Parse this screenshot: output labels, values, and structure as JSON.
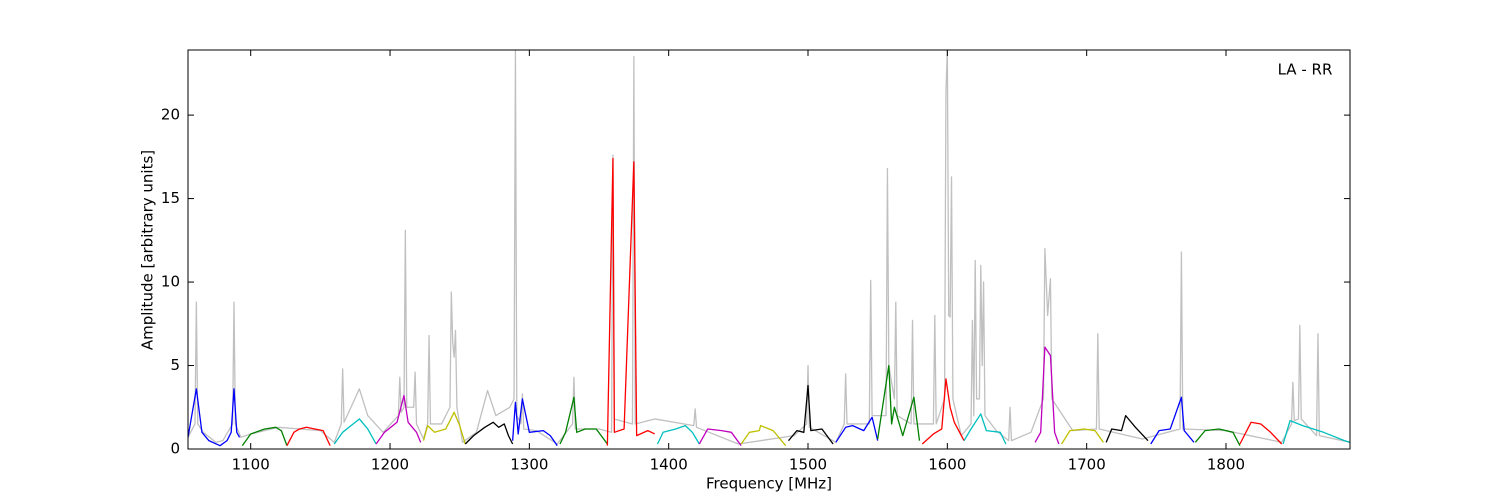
{
  "chart_data": {
    "type": "line",
    "annotation": "LA - RR",
    "x_label": "Frequency [MHz]",
    "y_label": "Amplitude [arbitrary units]",
    "xlim": [
      1055,
      1889
    ],
    "ylim": [
      0,
      23.9
    ],
    "xticks": [
      1100,
      1200,
      1300,
      1400,
      1500,
      1600,
      1700,
      1800
    ],
    "yticks": [
      0,
      5,
      10,
      15,
      20
    ],
    "series": [
      {
        "color": "#c0c0c0",
        "x": [
          1055,
          1060,
          1061,
          1062,
          1066,
          1075,
          1080,
          1087,
          1088,
          1089,
          1093,
          1100,
          1120,
          1150,
          1160,
          1165,
          1166,
          1167,
          1172,
          1178,
          1184,
          1195,
          1206,
          1207,
          1208,
          1210,
          1211,
          1212,
          1217,
          1218,
          1219,
          1224,
          1227,
          1228,
          1229,
          1237,
          1243,
          1244,
          1245,
          1246,
          1247,
          1248,
          1252,
          1262,
          1270,
          1276,
          1286,
          1289,
          1290,
          1291,
          1294,
          1295,
          1296,
          1305,
          1320,
          1331,
          1332,
          1333,
          1350,
          1359,
          1360,
          1361,
          1374,
          1375,
          1376,
          1390,
          1418,
          1419,
          1420,
          1450,
          1490,
          1499,
          1500,
          1501,
          1520,
          1526,
          1527,
          1528,
          1544,
          1545,
          1546,
          1556,
          1557,
          1558,
          1562,
          1563,
          1564,
          1574,
          1575,
          1576,
          1590,
          1591,
          1592,
          1598,
          1599,
          1600,
          1601,
          1602,
          1603,
          1604,
          1610,
          1617,
          1618,
          1619,
          1620,
          1621,
          1623,
          1624,
          1625,
          1626,
          1627,
          1635,
          1644,
          1645,
          1646,
          1660,
          1669,
          1670,
          1672,
          1674,
          1675,
          1690,
          1707,
          1708,
          1709,
          1740,
          1767,
          1768,
          1769,
          1800,
          1840,
          1847,
          1848,
          1849,
          1852,
          1853,
          1854,
          1865,
          1866,
          1867,
          1889
        ],
        "values": [
          0.7,
          1.5,
          8.8,
          1.5,
          1.0,
          0.4,
          0.5,
          1.5,
          8.8,
          1.5,
          0.7,
          0.9,
          1.3,
          1.1,
          0.4,
          1.5,
          4.8,
          1.6,
          2.5,
          3.6,
          2.0,
          1.0,
          2.0,
          4.3,
          2.2,
          2.5,
          13.1,
          2.5,
          2.5,
          4.6,
          1.5,
          0.6,
          1.5,
          6.8,
          1.5,
          1.5,
          2.5,
          9.4,
          6.4,
          5.5,
          7.1,
          2.5,
          0.4,
          1.0,
          3.5,
          2.0,
          2.5,
          3.0,
          23.9,
          2.0,
          1.5,
          3.3,
          1.2,
          1.1,
          0.3,
          1.5,
          4.3,
          1.2,
          1.2,
          1.0,
          17.6,
          1.8,
          1.5,
          23.5,
          1.5,
          1.8,
          1.4,
          2.4,
          1.3,
          0.3,
          0.8,
          1.5,
          5.0,
          1.3,
          0.4,
          1.5,
          4.5,
          1.5,
          1.5,
          10.1,
          2.0,
          2.0,
          16.8,
          5.0,
          3.0,
          8.8,
          2.0,
          1.5,
          7.7,
          1.5,
          1.5,
          8.0,
          1.5,
          3.0,
          21.4,
          23.9,
          8.0,
          7.9,
          16.3,
          3.0,
          0.8,
          1.5,
          7.7,
          2.0,
          11.3,
          3.0,
          3.0,
          11.0,
          5.0,
          10.0,
          2.0,
          1.1,
          0.5,
          2.5,
          0.5,
          1.0,
          3.0,
          12.0,
          8.0,
          10.2,
          3.0,
          1.1,
          1.2,
          6.9,
          1.2,
          0.6,
          1.2,
          11.8,
          1.2,
          1.1,
          0.4,
          1.5,
          4.0,
          1.7,
          1.8,
          7.4,
          1.8,
          0.8,
          6.9,
          0.8,
          0.4
        ]
      },
      {
        "color": "#0000ff",
        "x": [
          1055,
          1061,
          1065,
          1070,
          1078,
          1083,
          1086,
          1088,
          1090,
          1092
        ],
        "values": [
          0.7,
          3.6,
          1.0,
          0.5,
          0.2,
          0.5,
          1.0,
          3.6,
          1.0,
          0.7
        ]
      },
      {
        "color": "#008000",
        "x": [
          1094,
          1100,
          1110,
          1118,
          1122,
          1126
        ],
        "values": [
          0.2,
          0.9,
          1.2,
          1.3,
          1.1,
          0.2
        ]
      },
      {
        "color": "#ff0000",
        "x": [
          1126,
          1131,
          1135,
          1140,
          1146,
          1152,
          1157
        ],
        "values": [
          0.2,
          1.0,
          1.2,
          1.3,
          1.2,
          1.1,
          0.2
        ]
      },
      {
        "color": "#00bfbf",
        "x": [
          1160,
          1166,
          1172,
          1178,
          1184,
          1190
        ],
        "values": [
          0.3,
          1.0,
          1.4,
          1.8,
          1.2,
          0.3
        ]
      },
      {
        "color": "#bf00bf",
        "x": [
          1190,
          1196,
          1205,
          1210,
          1213,
          1219,
          1222
        ],
        "values": [
          0.3,
          1.0,
          1.6,
          3.2,
          1.6,
          1.0,
          0.4
        ]
      },
      {
        "color": "#bfbf00",
        "x": [
          1224,
          1227,
          1232,
          1240,
          1246,
          1250,
          1254
        ],
        "values": [
          0.5,
          1.4,
          1.0,
          1.2,
          2.2,
          1.4,
          0.3
        ]
      },
      {
        "color": "#000000",
        "x": [
          1254,
          1260,
          1268,
          1274,
          1278,
          1282,
          1285,
          1288
        ],
        "values": [
          0.3,
          0.8,
          1.3,
          1.6,
          1.3,
          1.5,
          0.8,
          0.3
        ]
      },
      {
        "color": "#0000ff",
        "x": [
          1288,
          1290,
          1292,
          1295,
          1300,
          1310,
          1315,
          1320
        ],
        "values": [
          0.5,
          2.8,
          0.9,
          3.0,
          1.0,
          1.1,
          0.8,
          0.2
        ]
      },
      {
        "color": "#008000",
        "x": [
          1322,
          1326,
          1332,
          1334,
          1340,
          1348,
          1356
        ],
        "values": [
          0.3,
          1.0,
          3.1,
          1.0,
          1.2,
          1.2,
          0.3
        ]
      },
      {
        "color": "#ff0000",
        "x": [
          1356,
          1360,
          1361,
          1368,
          1375,
          1377,
          1385,
          1390
        ],
        "values": [
          0.2,
          17.4,
          1.0,
          1.2,
          17.2,
          0.8,
          1.1,
          0.9
        ]
      },
      {
        "color": "#00bfbf",
        "x": [
          1392,
          1396,
          1405,
          1412,
          1417,
          1422
        ],
        "values": [
          0.3,
          1.0,
          1.2,
          1.4,
          1.0,
          0.3
        ]
      },
      {
        "color": "#bf00bf",
        "x": [
          1422,
          1428,
          1438,
          1445,
          1452
        ],
        "values": [
          0.3,
          1.2,
          1.1,
          1.0,
          0.2
        ]
      },
      {
        "color": "#bfbf00",
        "x": [
          1452,
          1458,
          1465,
          1466,
          1475,
          1484
        ],
        "values": [
          0.3,
          1.0,
          1.1,
          1.4,
          1.1,
          0.2
        ]
      },
      {
        "color": "#000000",
        "x": [
          1486,
          1492,
          1497,
          1500,
          1502,
          1510,
          1518
        ],
        "values": [
          0.5,
          1.1,
          1.0,
          3.8,
          1.1,
          1.2,
          0.3
        ]
      },
      {
        "color": "#0000ff",
        "x": [
          1520,
          1527,
          1532,
          1540,
          1546,
          1550
        ],
        "values": [
          0.4,
          1.3,
          1.4,
          1.1,
          1.9,
          0.5
        ]
      },
      {
        "color": "#008000",
        "x": [
          1550,
          1558,
          1560,
          1562,
          1568,
          1576,
          1580
        ],
        "values": [
          0.6,
          5.0,
          1.5,
          2.5,
          0.8,
          3.1,
          0.5
        ]
      },
      {
        "color": "#ff0000",
        "x": [
          1582,
          1590,
          1596,
          1599,
          1602,
          1605,
          1612
        ],
        "values": [
          0.3,
          0.9,
          1.2,
          4.2,
          2.5,
          1.6,
          0.5
        ]
      },
      {
        "color": "#00bfbf",
        "x": [
          1612,
          1617,
          1624,
          1628,
          1638,
          1642
        ],
        "values": [
          0.5,
          1.2,
          2.1,
          1.1,
          1.0,
          0.3
        ]
      },
      {
        "color": "#bf00bf",
        "x": [
          1663,
          1667,
          1670,
          1674,
          1677,
          1680
        ],
        "values": [
          0.4,
          1.0,
          6.1,
          5.6,
          1.0,
          0.3
        ]
      },
      {
        "color": "#bfbf00",
        "x": [
          1682,
          1688,
          1698,
          1706,
          1712
        ],
        "values": [
          0.3,
          1.1,
          1.2,
          1.1,
          0.4
        ]
      },
      {
        "color": "#000000",
        "x": [
          1714,
          1718,
          1725,
          1728,
          1735,
          1744
        ],
        "values": [
          0.4,
          1.2,
          1.1,
          2.0,
          1.3,
          0.5
        ]
      },
      {
        "color": "#0000ff",
        "x": [
          1746,
          1752,
          1760,
          1768,
          1770,
          1777
        ],
        "values": [
          0.3,
          1.1,
          1.2,
          3.1,
          1.1,
          0.4
        ]
      },
      {
        "color": "#008000",
        "x": [
          1778,
          1785,
          1795,
          1805,
          1810
        ],
        "values": [
          0.4,
          1.1,
          1.2,
          1.0,
          0.2
        ]
      },
      {
        "color": "#ff0000",
        "x": [
          1810,
          1818,
          1825,
          1832,
          1840
        ],
        "values": [
          0.3,
          1.6,
          1.5,
          1.0,
          0.3
        ]
      },
      {
        "color": "#00bfbf",
        "x": [
          1841,
          1846,
          1855,
          1870,
          1885,
          1889
        ],
        "values": [
          0.3,
          1.7,
          1.4,
          1.0,
          0.5,
          0.4
        ]
      }
    ]
  }
}
